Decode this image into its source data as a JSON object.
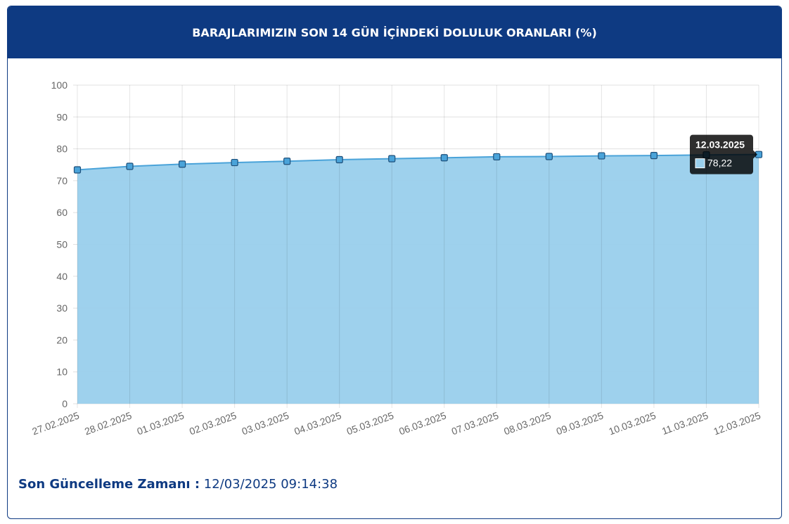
{
  "header": {
    "title": "BARAJLARIMIZIN SON 14 GÜN İÇİNDEKİ DOLULUK ORANLARI (%)"
  },
  "chart_data": {
    "type": "area",
    "categories": [
      "27.02.2025",
      "28.02.2025",
      "01.03.2025",
      "02.03.2025",
      "03.03.2025",
      "04.03.2025",
      "05.03.2025",
      "06.03.2025",
      "07.03.2025",
      "08.03.2025",
      "09.03.2025",
      "10.03.2025",
      "11.03.2025",
      "12.03.2025"
    ],
    "values": [
      73.4,
      74.5,
      75.2,
      75.7,
      76.1,
      76.6,
      76.9,
      77.2,
      77.5,
      77.6,
      77.8,
      77.9,
      78.1,
      78.22
    ],
    "value_labels": [
      null,
      null,
      null,
      null,
      null,
      null,
      null,
      null,
      null,
      null,
      null,
      null,
      null,
      "78,22"
    ],
    "color": "#4aa3d9",
    "fill": "#99cfec",
    "ylim": [
      0,
      100
    ],
    "yticks": [
      0,
      10,
      20,
      30,
      40,
      50,
      60,
      70,
      80,
      90,
      100
    ],
    "grid": true
  },
  "footer": {
    "label": "Son Güncelleme Zamanı :",
    "value": "12/03/2025 09:14:38"
  }
}
